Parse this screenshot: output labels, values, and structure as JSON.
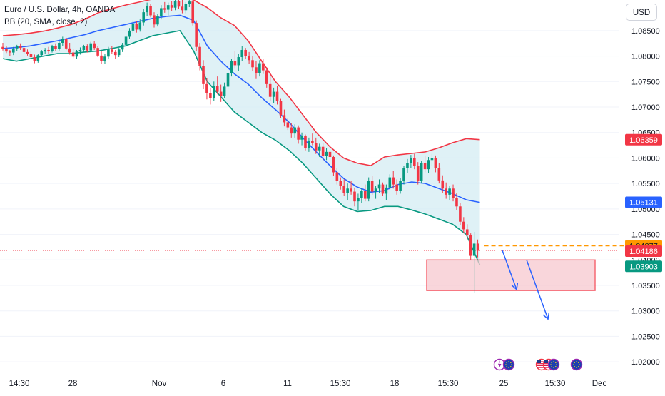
{
  "header": {
    "symbol": "Euro / U.S. Dollar, 4h, OANDA",
    "indicator": "BB (20, SMA, close, 2)"
  },
  "currency_button": "USD",
  "colors": {
    "up": "#089981",
    "down": "#f23645",
    "basis": "#2962ff",
    "upper_band": "#f23645",
    "lower_band": "#089981",
    "band_fill": "#d4ecf3",
    "zone_fill": "#f7c9cf",
    "zone_border": "#f23645",
    "arrow": "#2962ff",
    "dashed_level": "#ff9800"
  },
  "chart_data": {
    "type": "candlestick",
    "symbol": "EURUSD",
    "timeframe": "4h",
    "ylim": [
      1.0175,
      1.091
    ],
    "y_ticks": [
      "1.08500",
      "1.08000",
      "1.07500",
      "1.07000",
      "1.06500",
      "1.06000",
      "1.05500",
      "1.05000",
      "1.04500",
      "1.04000",
      "1.03500",
      "1.03000",
      "1.02500",
      "1.02000"
    ],
    "x_ticks": [
      "14:30",
      "28",
      "Nov",
      "6",
      "11",
      "15:30",
      "18",
      "15:30",
      "25",
      "15:30",
      "Dec"
    ],
    "price_labels": [
      {
        "label": "upper",
        "text": "1.06359",
        "value": 1.06359,
        "color": "#f23645"
      },
      {
        "label": "basis",
        "text": "1.05131",
        "value": 1.05131,
        "color": "#2962ff"
      },
      {
        "label": "ask",
        "text": "1.04277",
        "value": 1.04277,
        "color": "#ff9800"
      },
      {
        "label": "bid",
        "text": "1.04186",
        "value": 1.04186,
        "color": "#f23645"
      },
      {
        "label": "lower",
        "text": "1.03903",
        "value": 1.03903,
        "color": "#089981"
      }
    ],
    "key_levels": {
      "current": 1.04186,
      "dashed": 1.04277
    },
    "zone": {
      "from_price": 1.04,
      "to_price": 1.034
    },
    "projections": [
      {
        "start": 1.04186,
        "end": 1.0342
      },
      {
        "start": 1.04,
        "end": 1.0284
      }
    ],
    "bollinger": {
      "basis": [
        1.0815,
        1.0817,
        1.082,
        1.0825,
        1.083,
        1.0836,
        1.0842,
        1.085,
        1.0856,
        1.0862,
        1.0868,
        1.0874,
        1.0878,
        1.088,
        1.087,
        1.082,
        1.079,
        1.0765,
        1.0745,
        1.0718,
        1.0695,
        1.067,
        1.064,
        1.0612,
        1.0585,
        1.056,
        1.0543,
        1.0533,
        1.0536,
        1.0548,
        1.0553,
        1.055,
        1.054,
        1.053,
        1.0518,
        1.0513
      ],
      "upper": [
        1.084,
        1.0842,
        1.0845,
        1.0849,
        1.0855,
        1.0862,
        1.0872,
        1.0885,
        1.0893,
        1.09,
        1.0906,
        1.0912,
        1.0915,
        1.0918,
        1.091,
        1.0895,
        1.0875,
        1.086,
        1.083,
        1.079,
        1.075,
        1.072,
        1.0685,
        1.065,
        1.0622,
        1.06,
        1.059,
        1.0585,
        1.0602,
        1.0606,
        1.0609,
        1.0612,
        1.062,
        1.063,
        1.0638,
        1.0636
      ],
      "lower": [
        1.0795,
        1.079,
        1.0795,
        1.08,
        1.0805,
        1.0805,
        1.0808,
        1.081,
        1.0815,
        1.082,
        1.083,
        1.084,
        1.0845,
        1.085,
        1.081,
        1.075,
        1.072,
        1.069,
        1.067,
        1.065,
        1.0635,
        1.0615,
        1.059,
        1.056,
        1.053,
        1.0505,
        1.0495,
        1.0497,
        1.0505,
        1.0505,
        1.0498,
        1.049,
        1.048,
        1.047,
        1.045,
        1.039
      ]
    },
    "candles": [
      [
        1.0818,
        1.0826,
        1.0811,
        1.0814
      ],
      [
        1.0814,
        1.082,
        1.0806,
        1.0809
      ],
      [
        1.0809,
        1.0812,
        1.08,
        1.0807
      ],
      [
        1.0807,
        1.0818,
        1.0802,
        1.0815
      ],
      [
        1.0815,
        1.0822,
        1.081,
        1.0819
      ],
      [
        1.0819,
        1.0825,
        1.0812,
        1.0816
      ],
      [
        1.0816,
        1.0819,
        1.0804,
        1.0808
      ],
      [
        1.0808,
        1.0813,
        1.0801,
        1.0804
      ],
      [
        1.0804,
        1.0809,
        1.0795,
        1.0798
      ],
      [
        1.0798,
        1.0803,
        1.0786,
        1.079
      ],
      [
        1.079,
        1.0805,
        1.0787,
        1.0802
      ],
      [
        1.0802,
        1.0812,
        1.0798,
        1.0809
      ],
      [
        1.0809,
        1.0816,
        1.0804,
        1.0812
      ],
      [
        1.0812,
        1.0818,
        1.0805,
        1.081
      ],
      [
        1.081,
        1.0822,
        1.0807,
        1.0819
      ],
      [
        1.0819,
        1.0825,
        1.081,
        1.0814
      ],
      [
        1.0814,
        1.0829,
        1.0811,
        1.0826
      ],
      [
        1.0826,
        1.0838,
        1.082,
        1.0834
      ],
      [
        1.0834,
        1.0836,
        1.0812,
        1.0815
      ],
      [
        1.0815,
        1.0826,
        1.0803,
        1.0807
      ],
      [
        1.0807,
        1.0814,
        1.0796,
        1.0799
      ],
      [
        1.0799,
        1.0812,
        1.0794,
        1.0809
      ],
      [
        1.0809,
        1.0817,
        1.0803,
        1.0812
      ],
      [
        1.0812,
        1.0822,
        1.0808,
        1.0819
      ],
      [
        1.0819,
        1.0823,
        1.0807,
        1.0811
      ],
      [
        1.0811,
        1.0828,
        1.0808,
        1.0825
      ],
      [
        1.0825,
        1.083,
        1.0812,
        1.0816
      ],
      [
        1.0816,
        1.082,
        1.0798,
        1.0801
      ],
      [
        1.0801,
        1.081,
        1.0785,
        1.079
      ],
      [
        1.079,
        1.0805,
        1.0784,
        1.0799
      ],
      [
        1.0799,
        1.0818,
        1.0795,
        1.0813
      ],
      [
        1.0813,
        1.082,
        1.0805,
        1.0808
      ],
      [
        1.0808,
        1.0812,
        1.0795,
        1.0802
      ],
      [
        1.0802,
        1.0816,
        1.0798,
        1.0813
      ],
      [
        1.0813,
        1.0826,
        1.0808,
        1.0822
      ],
      [
        1.0822,
        1.0842,
        1.0818,
        1.0838
      ],
      [
        1.0838,
        1.0855,
        1.0833,
        1.085
      ],
      [
        1.085,
        1.087,
        1.0845,
        1.0864
      ],
      [
        1.0864,
        1.0868,
        1.0846,
        1.0852
      ],
      [
        1.0852,
        1.0872,
        1.0848,
        1.0866
      ],
      [
        1.0866,
        1.0892,
        1.086,
        1.0886
      ],
      [
        1.0886,
        1.0905,
        1.0878,
        1.0898
      ],
      [
        1.0898,
        1.0902,
        1.0876,
        1.088
      ],
      [
        1.088,
        1.0886,
        1.0856,
        1.0862
      ],
      [
        1.0862,
        1.0882,
        1.0858,
        1.0878
      ],
      [
        1.0878,
        1.09,
        1.0872,
        1.0894
      ],
      [
        1.0894,
        1.0906,
        1.0885,
        1.0891
      ],
      [
        1.0891,
        1.0905,
        1.088,
        1.09
      ],
      [
        1.09,
        1.0908,
        1.0888,
        1.0895
      ],
      [
        1.0895,
        1.0912,
        1.089,
        1.0908
      ],
      [
        1.0908,
        1.0912,
        1.0892,
        1.0897
      ],
      [
        1.0897,
        1.091,
        1.0884,
        1.089
      ],
      [
        1.089,
        1.0906,
        1.0884,
        1.0902
      ],
      [
        1.0902,
        1.0912,
        1.0896,
        1.0907
      ],
      [
        1.0907,
        1.091,
        1.086,
        1.0865
      ],
      [
        1.0865,
        1.087,
        1.081,
        1.0818
      ],
      [
        1.0818,
        1.0826,
        1.0772,
        1.078
      ],
      [
        1.078,
        1.0792,
        1.0735,
        1.0745
      ],
      [
        1.0745,
        1.0756,
        1.0715,
        1.0728
      ],
      [
        1.0728,
        1.0738,
        1.0705,
        1.0718
      ],
      [
        1.0718,
        1.075,
        1.0712,
        1.0742
      ],
      [
        1.0742,
        1.076,
        1.0725,
        1.073
      ],
      [
        1.073,
        1.0744,
        1.071,
        1.0722
      ],
      [
        1.0722,
        1.0748,
        1.0718,
        1.074
      ],
      [
        1.074,
        1.0772,
        1.0735,
        1.0766
      ],
      [
        1.0766,
        1.0795,
        1.076,
        1.079
      ],
      [
        1.079,
        1.081,
        1.0775,
        1.0782
      ],
      [
        1.0782,
        1.0805,
        1.077,
        1.0798
      ],
      [
        1.0798,
        1.082,
        1.079,
        1.0812
      ],
      [
        1.0812,
        1.0816,
        1.0795,
        1.08
      ],
      [
        1.08,
        1.0808,
        1.0785,
        1.0792
      ],
      [
        1.0792,
        1.08,
        1.077,
        1.0778
      ],
      [
        1.0778,
        1.079,
        1.0755,
        1.0766
      ],
      [
        1.0766,
        1.0792,
        1.076,
        1.0786
      ],
      [
        1.0786,
        1.0795,
        1.0765,
        1.0772
      ],
      [
        1.0772,
        1.0778,
        1.0738,
        1.0745
      ],
      [
        1.0745,
        1.076,
        1.0712,
        1.072
      ],
      [
        1.072,
        1.0738,
        1.0708,
        1.073
      ],
      [
        1.073,
        1.0742,
        1.0705,
        1.0712
      ],
      [
        1.0712,
        1.0716,
        1.0678,
        1.0684
      ],
      [
        1.0684,
        1.0695,
        1.0662,
        1.067
      ],
      [
        1.067,
        1.0678,
        1.0655,
        1.066
      ],
      [
        1.066,
        1.0668,
        1.064,
        1.0648
      ],
      [
        1.0648,
        1.0666,
        1.064,
        1.066
      ],
      [
        1.066,
        1.0664,
        1.0628,
        1.0636
      ],
      [
        1.0636,
        1.065,
        1.0625,
        1.0643
      ],
      [
        1.0643,
        1.0646,
        1.0615,
        1.062
      ],
      [
        1.062,
        1.064,
        1.0612,
        1.0634
      ],
      [
        1.0634,
        1.0648,
        1.0625,
        1.063
      ],
      [
        1.063,
        1.064,
        1.0608,
        1.0615
      ],
      [
        1.0615,
        1.0628,
        1.0602,
        1.0622
      ],
      [
        1.0622,
        1.063,
        1.0595,
        1.0604
      ],
      [
        1.0604,
        1.062,
        1.0596,
        1.0612
      ],
      [
        1.0612,
        1.0622,
        1.0598,
        1.0602
      ],
      [
        1.0602,
        1.0605,
        1.0565,
        1.0572
      ],
      [
        1.0572,
        1.058,
        1.0548,
        1.0555
      ],
      [
        1.0555,
        1.0562,
        1.0538,
        1.0545
      ],
      [
        1.0545,
        1.0558,
        1.0525,
        1.0532
      ],
      [
        1.0532,
        1.055,
        1.0518,
        1.054
      ],
      [
        1.054,
        1.0555,
        1.0528,
        1.0534
      ],
      [
        1.0534,
        1.0542,
        1.0505,
        1.0515
      ],
      [
        1.0515,
        1.053,
        1.0498,
        1.0522
      ],
      [
        1.0522,
        1.054,
        1.0512,
        1.0535
      ],
      [
        1.0535,
        1.0548,
        1.0515,
        1.052
      ],
      [
        1.052,
        1.0562,
        1.0515,
        1.0555
      ],
      [
        1.0555,
        1.0565,
        1.0528,
        1.0534
      ],
      [
        1.0534,
        1.0546,
        1.052,
        1.054
      ],
      [
        1.054,
        1.0558,
        1.0532,
        1.0548
      ],
      [
        1.0548,
        1.0552,
        1.0525,
        1.053
      ],
      [
        1.053,
        1.0548,
        1.0518,
        1.0542
      ],
      [
        1.0542,
        1.0568,
        1.0538,
        1.0562
      ],
      [
        1.0562,
        1.0575,
        1.054,
        1.0548
      ],
      [
        1.0548,
        1.0558,
        1.0528,
        1.0535
      ],
      [
        1.0535,
        1.056,
        1.053,
        1.0555
      ],
      [
        1.0555,
        1.0585,
        1.0548,
        1.058
      ],
      [
        1.058,
        1.0598,
        1.057,
        1.059
      ],
      [
        1.059,
        1.0606,
        1.058,
        1.06
      ],
      [
        1.06,
        1.0608,
        1.0578,
        1.0585
      ],
      [
        1.0585,
        1.0592,
        1.0548,
        1.0555
      ],
      [
        1.0555,
        1.0595,
        1.055,
        1.059
      ],
      [
        1.059,
        1.0605,
        1.0572,
        1.0578
      ],
      [
        1.0578,
        1.0602,
        1.057,
        1.0596
      ],
      [
        1.0596,
        1.0608,
        1.0585,
        1.06
      ],
      [
        1.06,
        1.0605,
        1.0572,
        1.058
      ],
      [
        1.058,
        1.059,
        1.055,
        1.0556
      ],
      [
        1.0556,
        1.0566,
        1.0532,
        1.054
      ],
      [
        1.054,
        1.0552,
        1.052,
        1.0528
      ],
      [
        1.0528,
        1.0546,
        1.0518,
        1.054
      ],
      [
        1.054,
        1.0548,
        1.0515,
        1.0522
      ],
      [
        1.0522,
        1.0532,
        1.0498,
        1.0505
      ],
      [
        1.0505,
        1.0512,
        1.0468,
        1.0475
      ],
      [
        1.0475,
        1.0484,
        1.0452,
        1.046
      ],
      [
        1.046,
        1.047,
        1.044,
        1.0448
      ],
      [
        1.0448,
        1.0452,
        1.04,
        1.0408
      ],
      [
        1.0408,
        1.0455,
        1.0335,
        1.0432
      ],
      [
        1.0432,
        1.044,
        1.0405,
        1.0418
      ]
    ]
  }
}
